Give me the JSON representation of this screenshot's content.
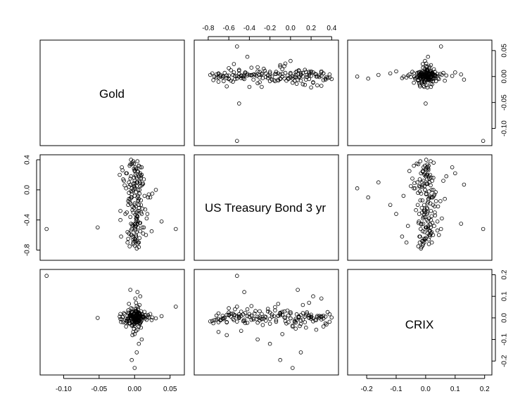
{
  "chart_data": {
    "type": "scatter",
    "layout": "pairs-matrix",
    "variables": [
      "Gold",
      "US Treasury Bond 3 yr",
      "CRIX"
    ],
    "variable_keys": [
      "gold",
      "bond",
      "crix"
    ],
    "grid": false,
    "ranges": {
      "gold": [
        -0.125,
        0.062
      ],
      "bond": [
        -0.88,
        0.41
      ],
      "crix": [
        -0.245,
        0.205
      ]
    },
    "ticks": {
      "gold": {
        "values": [
          -0.1,
          -0.05,
          0.0,
          0.05
        ],
        "labels": [
          "-0.10",
          "-0.05",
          "0.00",
          "0.05"
        ]
      },
      "bond": {
        "values": [
          -0.8,
          -0.6,
          -0.4,
          -0.2,
          0.0,
          0.2,
          0.4
        ],
        "labels": [
          "-0.8",
          "-0.6",
          "-0.4",
          "-0.2",
          "0.0",
          "0.2",
          "0.4"
        ]
      },
      "bond_left": {
        "values": [
          -0.8,
          -0.4,
          0.0,
          0.4
        ],
        "labels": [
          "-0.8",
          "-0.4",
          "0.0",
          "0.4"
        ]
      },
      "crix": {
        "values": [
          -0.2,
          -0.1,
          0.0,
          0.1,
          0.2
        ],
        "labels": [
          "-0.2",
          "-0.1",
          "0.0",
          "0.1",
          "0.2"
        ]
      }
    },
    "axis_labels": {
      "top": "bond",
      "right": "gold",
      "left": "bond_left",
      "bottom_col0": "gold",
      "bottom_col2": "crix",
      "right_row2": "crix"
    },
    "points": [
      [
        0.0,
        -0.65,
        0.0
      ],
      [
        0.003,
        0.05,
        -0.004
      ],
      [
        -0.002,
        -0.3,
        0.006
      ],
      [
        0.006,
        -0.12,
        0.01
      ],
      [
        -0.005,
        -0.45,
        -0.008
      ],
      [
        0.001,
        0.2,
        0.003
      ],
      [
        0.008,
        -0.55,
        0.015
      ],
      [
        -0.008,
        0.1,
        -0.012
      ],
      [
        0.004,
        -0.35,
        0.02
      ],
      [
        -0.003,
        -0.02,
        -0.02
      ],
      [
        0.01,
        0.3,
        0.008
      ],
      [
        -0.01,
        -0.7,
        -0.005
      ],
      [
        0.002,
        -0.22,
        0.03
      ],
      [
        -0.001,
        0.35,
        -0.03
      ],
      [
        0.005,
        -0.5,
        0.002
      ],
      [
        -0.006,
        0.15,
        0.012
      ],
      [
        0.007,
        -0.05,
        -0.015
      ],
      [
        -0.004,
        -0.6,
        0.025
      ],
      [
        0.0,
        0.25,
        -0.01
      ],
      [
        0.003,
        -0.4,
        0.005
      ],
      [
        -0.002,
        0.0,
        -0.002
      ],
      [
        0.006,
        -0.28,
        0.018
      ],
      [
        -0.007,
        -0.75,
        -0.025
      ],
      [
        0.012,
        0.08,
        0.004
      ],
      [
        -0.009,
        -0.15,
        0.035
      ],
      [
        0.001,
        -0.33,
        -0.006
      ],
      [
        0.009,
        0.18,
        0.0
      ],
      [
        -0.003,
        -0.48,
        0.009
      ],
      [
        0.004,
        0.38,
        -0.018
      ],
      [
        -0.005,
        -0.1,
        0.022
      ],
      [
        0.002,
        -0.62,
        0.014
      ],
      [
        0.0,
        0.12,
        -0.008
      ],
      [
        0.011,
        -0.25,
        0.006
      ],
      [
        -0.012,
        0.02,
        -0.04
      ],
      [
        0.005,
        -0.42,
        0.04
      ],
      [
        -0.001,
        0.28,
        0.001
      ],
      [
        0.003,
        -0.68,
        -0.012
      ],
      [
        -0.006,
        -0.18,
        0.016
      ],
      [
        0.008,
        0.05,
        -0.022
      ],
      [
        -0.004,
        -0.52,
        0.007
      ],
      [
        0.014,
        -0.08,
        0.028
      ],
      [
        -0.011,
        0.22,
        -0.016
      ],
      [
        0.002,
        -0.38,
        0.011
      ],
      [
        0.006,
        0.32,
        -0.003
      ],
      [
        -0.008,
        -0.58,
        0.019
      ],
      [
        0.0,
        -0.2,
        -0.027
      ],
      [
        0.004,
        0.1,
        0.013
      ],
      [
        -0.002,
        -0.72,
        -0.009
      ],
      [
        0.009,
        -0.3,
        0.031
      ],
      [
        -0.005,
        0.4,
        0.002
      ],
      [
        0.001,
        -0.45,
        -0.014
      ],
      [
        0.007,
        0.0,
        0.02
      ],
      [
        -0.009,
        -0.65,
        -0.006
      ],
      [
        0.003,
        0.16,
        0.026
      ],
      [
        -0.003,
        -0.27,
        -0.033
      ],
      [
        0.013,
        -0.5,
        0.003
      ],
      [
        -0.014,
        0.06,
        0.017
      ],
      [
        0.005,
        -0.14,
        -0.011
      ],
      [
        0.0,
        0.26,
        0.009
      ],
      [
        -0.006,
        -0.36,
        -0.002
      ],
      [
        0.016,
        -0.6,
        0.012
      ],
      [
        -0.016,
        0.14,
        -0.02
      ],
      [
        0.002,
        -0.03,
        0.034
      ],
      [
        0.008,
        -0.44,
        -0.024
      ],
      [
        -0.004,
        0.34,
        0.006
      ],
      [
        0.006,
        -0.7,
        0.021
      ],
      [
        -0.001,
        -0.24,
        -0.013
      ],
      [
        0.01,
        0.2,
        0.015
      ],
      [
        -0.01,
        -0.56,
        -0.004
      ],
      [
        0.004,
        -0.1,
        0.024
      ],
      [
        0.0,
        0.04,
        -0.019
      ],
      [
        -0.002,
        -0.66,
        0.01
      ],
      [
        0.018,
        -0.32,
        0.005
      ],
      [
        -0.018,
        0.3,
        -0.007
      ],
      [
        0.001,
        -0.48,
        0.029
      ],
      [
        0.007,
        0.1,
        -0.028
      ],
      [
        -0.007,
        -0.16,
        0.008
      ],
      [
        0.003,
        -0.78,
        -0.016
      ],
      [
        0.02,
        -0.06,
        0.002
      ],
      [
        -0.02,
        -0.4,
        0.018
      ],
      [
        0.005,
        0.24,
        -0.01
      ],
      [
        -0.005,
        -0.54,
        0.013
      ],
      [
        0.009,
        -0.2,
        -0.005
      ],
      [
        -0.003,
        0.36,
        0.027
      ],
      [
        0.002,
        -0.62,
        -0.021
      ],
      [
        0.011,
        0.08,
        0.007
      ],
      [
        -0.011,
        -0.3,
        -0.012
      ],
      [
        0.0,
        -0.46,
        0.016
      ],
      [
        0.006,
        0.18,
        0.001
      ],
      [
        -0.008,
        -0.04,
        -0.026
      ],
      [
        0.004,
        -0.72,
        0.011
      ],
      [
        0.015,
        -0.26,
        -0.003
      ],
      [
        -0.015,
        0.12,
        0.022
      ],
      [
        0.001,
        -0.52,
        -0.017
      ],
      [
        0.008,
        0.3,
        0.004
      ],
      [
        -0.006,
        -0.12,
        0.009
      ],
      [
        0.0,
        -0.68,
        -0.008
      ],
      [
        0.003,
        -0.34,
        0.032
      ],
      [
        -0.004,
        0.02,
        -0.036
      ],
      [
        0.012,
        -0.58,
        0.006
      ],
      [
        -0.012,
        0.22,
        -0.002
      ],
      [
        0.005,
        -0.08,
        0.014
      ],
      [
        0.002,
        -0.42,
        -0.023
      ],
      [
        -0.002,
        0.38,
        0.017
      ],
      [
        0.007,
        -0.64,
        0.0
      ],
      [
        -0.009,
        -0.2,
        0.025
      ],
      [
        0.01,
        0.06,
        -0.011
      ],
      [
        0.0,
        -0.5,
        0.008
      ],
      [
        0.004,
        -0.28,
        -0.006
      ],
      [
        -0.001,
        0.16,
        0.019
      ],
      [
        0.006,
        -0.76,
        -0.014
      ],
      [
        -0.005,
        -0.02,
        0.012
      ],
      [
        0.017,
        -0.38,
        -0.009
      ],
      [
        -0.017,
        0.26,
        0.003
      ],
      [
        0.003,
        -0.56,
        0.02
      ],
      [
        0.009,
        -0.14,
        -0.018
      ],
      [
        -0.007,
        0.32,
        0.01
      ],
      [
        0.001,
        -0.66,
        -0.003
      ],
      [
        0.005,
        0.0,
        0.026
      ],
      [
        -0.003,
        -0.46,
        -0.015
      ],
      [
        0.013,
        0.14,
        0.005
      ],
      [
        -0.013,
        -0.32,
        -0.022
      ],
      [
        0.002,
        -0.6,
        0.015
      ],
      [
        0.008,
        0.2,
        -0.004
      ],
      [
        -0.004,
        -0.06,
        0.03
      ],
      [
        0.0,
        -0.74,
        -0.01
      ],
      [
        0.006,
        -0.24,
        0.004
      ],
      [
        -0.006,
        0.34,
        -0.025
      ],
      [
        0.011,
        -0.5,
        0.017
      ],
      [
        -0.002,
        0.08,
        0.002
      ],
      [
        0.004,
        -0.36,
        -0.007
      ],
      [
        0.019,
        -0.1,
        0.013
      ],
      [
        -0.019,
        -0.62,
        -0.019
      ],
      [
        0.002,
        0.28,
        0.009
      ],
      [
        0.007,
        -0.44,
        0.023
      ],
      [
        -0.008,
        0.04,
        -0.013
      ],
      [
        0.0,
        -0.18,
        0.006
      ],
      [
        0.005,
        -0.7,
        -0.02
      ],
      [
        -0.005,
        0.18,
        0.011
      ],
      [
        0.003,
        -0.3,
        -0.001
      ],
      [
        -0.124,
        -0.52,
        0.195
      ],
      [
        0.058,
        -0.52,
        0.052
      ],
      [
        -0.052,
        -0.5,
        0.0
      ],
      [
        0.038,
        -0.42,
        0.008
      ],
      [
        0.03,
        0.0,
        -0.002
      ],
      [
        -0.02,
        -0.28,
        -0.005
      ],
      [
        0.022,
        -0.1,
        0.018
      ],
      [
        -0.021,
        0.2,
        0.006
      ],
      [
        0.024,
        -0.55,
        -0.01
      ],
      [
        0.025,
        -0.05,
        0.002
      ],
      [
        0.0,
        0.02,
        -0.232
      ],
      [
        -0.004,
        -0.1,
        -0.195
      ],
      [
        0.003,
        0.1,
        -0.16
      ],
      [
        0.01,
        -0.32,
        -0.1
      ],
      [
        -0.006,
        0.07,
        0.13
      ],
      [
        0.004,
        -0.45,
        0.12
      ],
      [
        0.008,
        0.22,
        0.1
      ],
      [
        -0.003,
        -0.62,
        -0.08
      ],
      [
        0.001,
        0.3,
        0.09
      ],
      [
        0.006,
        -0.2,
        -0.12
      ],
      [
        0.002,
        0.18,
        0.07
      ],
      [
        -0.002,
        -0.7,
        -0.065
      ],
      [
        0.007,
        0.12,
        0.06
      ],
      [
        0.0,
        -0.08,
        -0.075
      ],
      [
        0.005,
        -0.15,
        0.05
      ],
      [
        -0.001,
        0.05,
        -0.05
      ],
      [
        0.003,
        -0.38,
        0.055
      ],
      [
        0.009,
        0.15,
        -0.045
      ],
      [
        -0.005,
        -0.6,
        0.045
      ],
      [
        0.004,
        0.25,
        -0.055
      ],
      [
        -0.008,
        -0.12,
        0.065
      ],
      [
        0.002,
        -0.48,
        -0.06
      ],
      [
        0.001,
        -0.54,
        0.04
      ],
      [
        0.006,
        0.32,
        -0.04
      ],
      [
        -0.003,
        -0.22,
        0.042
      ],
      [
        0.0,
        0.09,
        -0.038
      ]
    ]
  }
}
